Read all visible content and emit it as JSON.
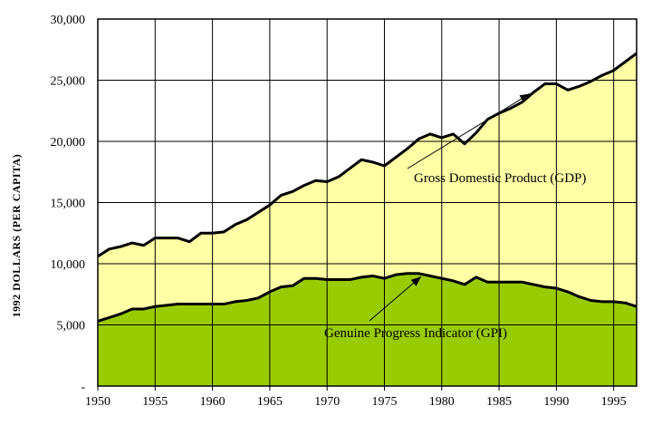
{
  "chart_data": {
    "type": "area",
    "title": "",
    "xlabel": "",
    "ylabel": "1992 DOLLARS (PER CAPITA)",
    "xlim": [
      1950,
      1997
    ],
    "ylim": [
      0,
      30000
    ],
    "x_ticks": [
      "1950",
      "1955",
      "1960",
      "1965",
      "1970",
      "1975",
      "1980",
      "1985",
      "1990",
      "1995"
    ],
    "y_ticks": [
      "-",
      "5,000",
      "10,000",
      "15,000",
      "20,000",
      "25,000",
      "30,000"
    ],
    "grid": true,
    "colors": {
      "gdp_fill": "#ffffa6",
      "gpi_fill": "#99cc00",
      "line": "#000000",
      "grid": "#000000"
    },
    "x": [
      1950,
      1951,
      1952,
      1953,
      1954,
      1955,
      1956,
      1957,
      1958,
      1959,
      1960,
      1961,
      1962,
      1963,
      1964,
      1965,
      1966,
      1967,
      1968,
      1969,
      1970,
      1971,
      1972,
      1973,
      1974,
      1975,
      1976,
      1977,
      1978,
      1979,
      1980,
      1981,
      1982,
      1983,
      1984,
      1985,
      1986,
      1987,
      1988,
      1989,
      1990,
      1991,
      1992,
      1993,
      1994,
      1995,
      1996,
      1997
    ],
    "series": [
      {
        "key": "gdp",
        "values": [
          10600,
          11200,
          11400,
          11700,
          11500,
          12100,
          12100,
          12100,
          11800,
          12500,
          12500,
          12600,
          13200,
          13600,
          14200,
          14800,
          15600,
          15900,
          16400,
          16800,
          16700,
          17100,
          17800,
          18500,
          18300,
          18000,
          18700,
          19400,
          20200,
          20600,
          20300,
          20600,
          19800,
          20700,
          21800,
          22300,
          22700,
          23200,
          24000,
          24700,
          24700,
          24200,
          24500,
          24900,
          25400,
          25800,
          26500,
          27200
        ]
      },
      {
        "key": "gpi",
        "values": [
          5300,
          5600,
          5900,
          6300,
          6300,
          6500,
          6600,
          6700,
          6700,
          6700,
          6700,
          6700,
          6900,
          7000,
          7200,
          7700,
          8100,
          8200,
          8800,
          8800,
          8700,
          8700,
          8700,
          8900,
          9000,
          8800,
          9100,
          9200,
          9200,
          9000,
          8800,
          8600,
          8300,
          8900,
          8500,
          8500,
          8500,
          8500,
          8300,
          8100,
          8000,
          7700,
          7300,
          7000,
          6900,
          6900,
          6800,
          6500
        ]
      }
    ],
    "annotations": [
      {
        "text": "Gross Domestic Product (GDP)",
        "arrow_to": [
          1987.7,
          23900
        ]
      },
      {
        "text": "Genuine Progress Indicator (GPI)",
        "arrow_to": [
          1978.2,
          8950
        ]
      }
    ]
  }
}
